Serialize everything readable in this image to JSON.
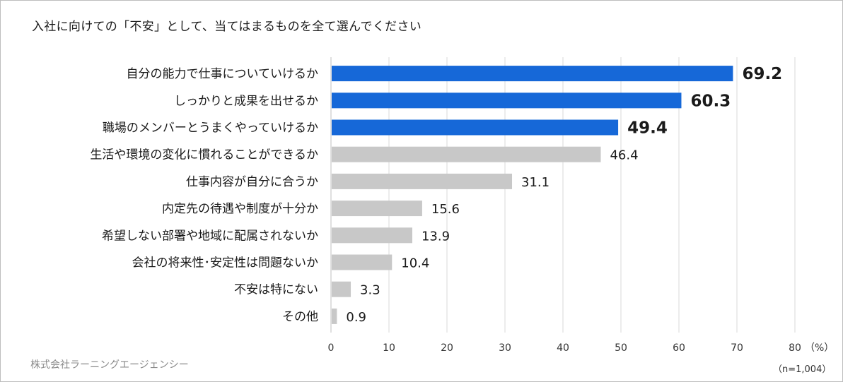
{
  "title": "入社に向けての「不安」として、当てはまるものを全て選んでください",
  "source": "株式会社ラーニングエージェンシー",
  "sample_size": "（n=1,004）",
  "colors": {
    "highlight": "#1668d8",
    "normal": "#c8c8c8",
    "grid": "#d9d9d9",
    "axis": "#bfbfbf"
  },
  "chart_data": {
    "type": "bar",
    "orientation": "horizontal",
    "categories": [
      "自分の能力で仕事についていけるか",
      "しっかりと成果を出せるか",
      "職場のメンバーとうまくやっていけるか",
      "生活や環境の変化に慣れることができるか",
      "仕事内容が自分に合うか",
      "内定先の待遇や制度が十分か",
      "希望しない部署や地域に配属されないか",
      "会社の将来性･安定性は問題ないか",
      "不安は特にない",
      "その他"
    ],
    "values": [
      69.2,
      60.3,
      49.4,
      46.4,
      31.1,
      15.6,
      13.9,
      10.4,
      3.3,
      0.9
    ],
    "value_labels": [
      "69.2",
      "60.3",
      "49.4",
      "46.4",
      "31.1",
      "15.6",
      "13.9",
      "10.4",
      "3.3",
      "0.9"
    ],
    "highlighted": [
      true,
      true,
      true,
      false,
      false,
      false,
      false,
      false,
      false,
      false
    ],
    "xlim": [
      0,
      80
    ],
    "xticks": [
      "0",
      "10",
      "20",
      "30",
      "40",
      "50",
      "60",
      "70",
      "80"
    ],
    "x_unit": "（%）",
    "grid": true,
    "legend": "none"
  }
}
